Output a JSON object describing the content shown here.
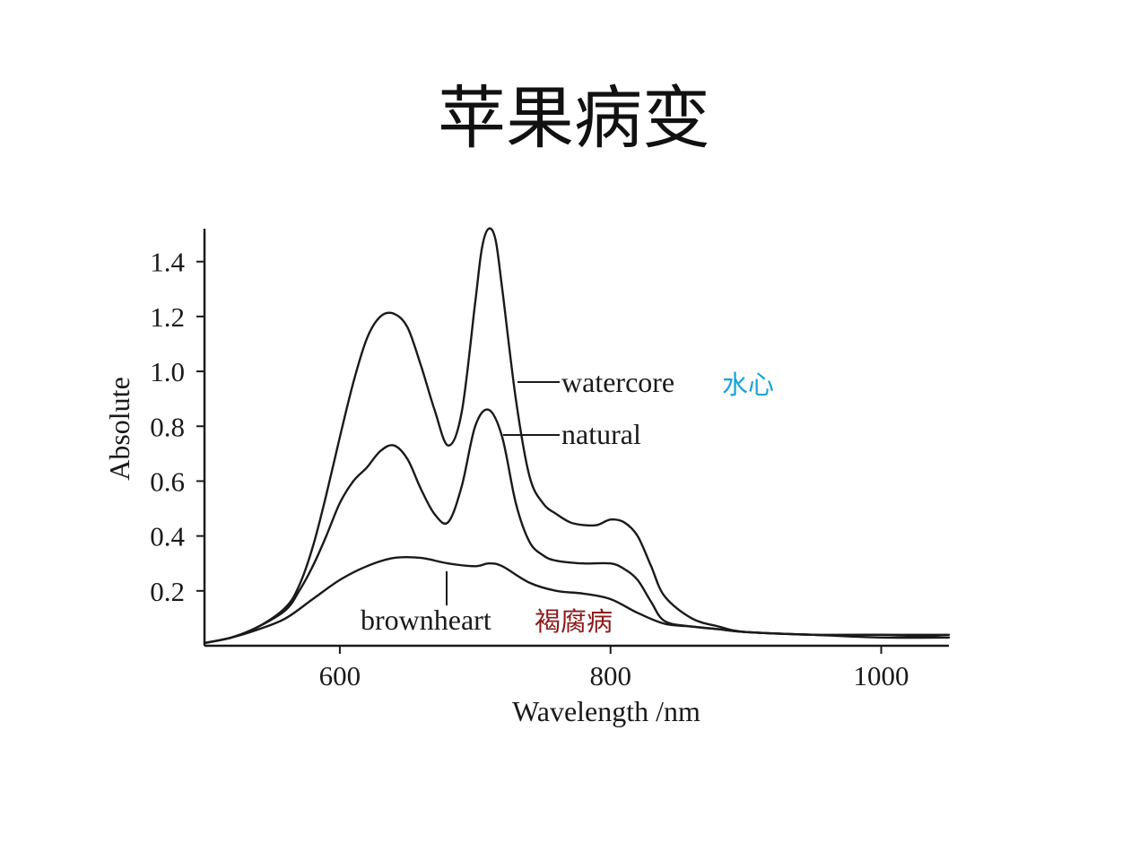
{
  "slide": {
    "title": "苹果病变"
  },
  "colors": {
    "ink": "#1a1a1a",
    "watercore_cn": "#1aa3d9",
    "brownheart_cn": "#8b1a1a"
  },
  "chart_data": {
    "type": "line",
    "xlabel": "Wavelength  /nm",
    "ylabel": "Absolute",
    "xlim": [
      500,
      1050
    ],
    "ylim": [
      0,
      1.52
    ],
    "x_ticks": [
      {
        "value": 600,
        "label": "600"
      },
      {
        "value": 800,
        "label": "800"
      },
      {
        "value": 1000,
        "label": "1000"
      }
    ],
    "y_ticks": [
      {
        "value": 0.2,
        "label": "0.2"
      },
      {
        "value": 0.4,
        "label": "0.4"
      },
      {
        "value": 0.6,
        "label": "0.6"
      },
      {
        "value": 0.8,
        "label": "0.8"
      },
      {
        "value": 1.0,
        "label": "1.0"
      },
      {
        "value": 1.2,
        "label": "1.2"
      },
      {
        "value": 1.4,
        "label": "1.4"
      }
    ],
    "grid": false,
    "legend": "none",
    "series": [
      {
        "name": "watercore",
        "name_cn": "水心",
        "x": [
          500,
          520,
          540,
          560,
          570,
          580,
          590,
          600,
          610,
          620,
          630,
          640,
          650,
          660,
          670,
          680,
          690,
          700,
          705,
          710,
          715,
          720,
          730,
          740,
          750,
          760,
          770,
          780,
          790,
          800,
          810,
          820,
          830,
          840,
          860,
          880,
          900,
          950,
          1000,
          1050
        ],
        "y": [
          0.01,
          0.03,
          0.07,
          0.14,
          0.22,
          0.36,
          0.55,
          0.76,
          0.96,
          1.12,
          1.2,
          1.21,
          1.16,
          1.02,
          0.86,
          0.73,
          0.85,
          1.25,
          1.45,
          1.52,
          1.48,
          1.3,
          0.9,
          0.62,
          0.52,
          0.48,
          0.45,
          0.44,
          0.44,
          0.46,
          0.45,
          0.4,
          0.29,
          0.18,
          0.1,
          0.07,
          0.05,
          0.04,
          0.03,
          0.03
        ]
      },
      {
        "name": "natural",
        "x": [
          500,
          520,
          540,
          560,
          570,
          580,
          590,
          600,
          610,
          620,
          630,
          640,
          650,
          660,
          670,
          680,
          690,
          700,
          710,
          720,
          730,
          740,
          750,
          760,
          780,
          800,
          810,
          820,
          830,
          840,
          860,
          880,
          900,
          950,
          1000,
          1050
        ],
        "y": [
          0.01,
          0.03,
          0.07,
          0.13,
          0.2,
          0.29,
          0.4,
          0.52,
          0.6,
          0.65,
          0.71,
          0.73,
          0.68,
          0.57,
          0.48,
          0.45,
          0.58,
          0.8,
          0.86,
          0.76,
          0.52,
          0.38,
          0.33,
          0.31,
          0.3,
          0.3,
          0.28,
          0.24,
          0.16,
          0.09,
          0.07,
          0.06,
          0.05,
          0.04,
          0.04,
          0.03
        ]
      },
      {
        "name": "brownheart",
        "name_cn": "褐腐病",
        "x": [
          500,
          520,
          540,
          560,
          580,
          600,
          620,
          640,
          660,
          680,
          700,
          710,
          720,
          740,
          760,
          780,
          800,
          820,
          840,
          860,
          880,
          900,
          950,
          1000,
          1050
        ],
        "y": [
          0.01,
          0.03,
          0.06,
          0.1,
          0.17,
          0.24,
          0.29,
          0.32,
          0.32,
          0.3,
          0.29,
          0.3,
          0.29,
          0.23,
          0.2,
          0.19,
          0.17,
          0.12,
          0.08,
          0.07,
          0.06,
          0.05,
          0.04,
          0.04,
          0.04
        ]
      }
    ]
  }
}
